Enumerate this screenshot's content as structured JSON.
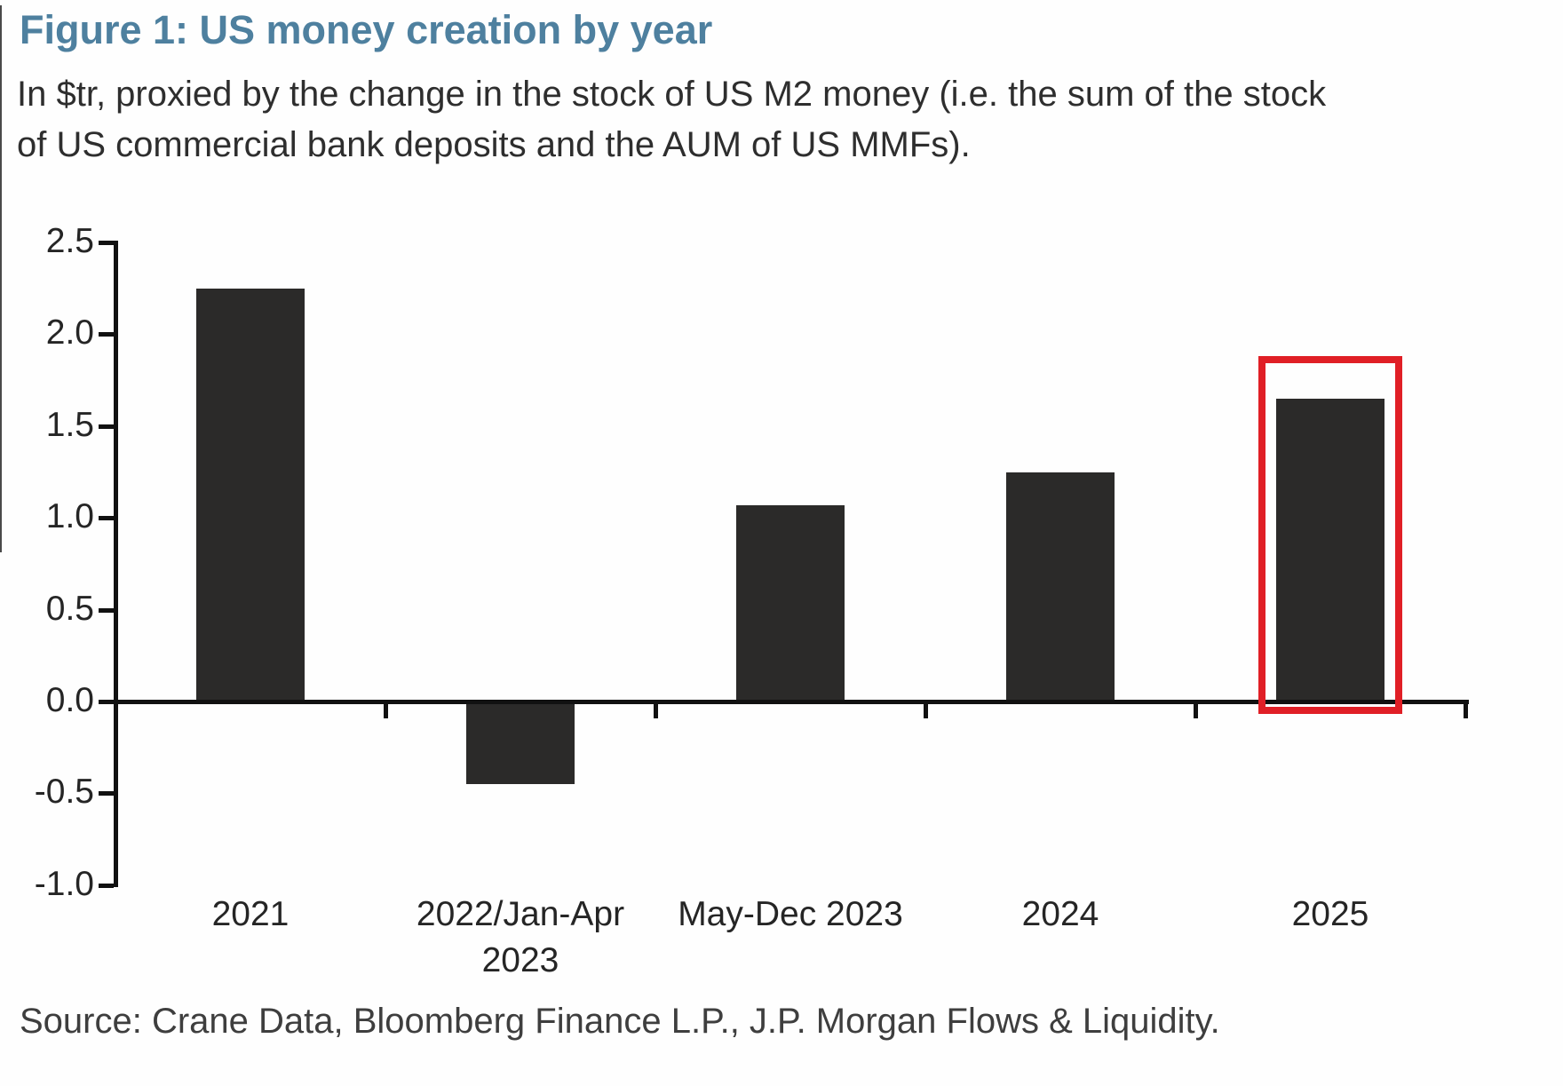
{
  "figure": {
    "title": "Figure 1: US money creation by year",
    "subtitle_line1": "In $tr, proxied by the change in the stock of US M2 money (i.e. the sum of the stock",
    "subtitle_line2": "of US commercial bank deposits and the AUM of US MMFs).",
    "source": "Source: Crane Data, Bloomberg Finance L.P., J.P. Morgan Flows & Liquidity."
  },
  "colors": {
    "title_blue": "#4e809f",
    "bar": "#2b2a29",
    "axis": "#111111",
    "label_text": "#252525",
    "source_text": "#3e3e3e",
    "highlight_red": "#e01f26"
  },
  "chart_data": {
    "type": "bar",
    "title": "Figure 1: US money creation by year",
    "units": "$tr",
    "categories": [
      "2021",
      "2022/Jan-Apr\n2023",
      "May-Dec 2023",
      "2024",
      "2025"
    ],
    "values": [
      2.25,
      -0.45,
      1.07,
      1.25,
      1.65
    ],
    "ylim": [
      -1.0,
      2.5
    ],
    "ytick_labels": [
      "2.5",
      "2.0",
      "1.5",
      "1.0",
      "0.5",
      "0.0",
      "-0.5",
      "-1.0"
    ],
    "xlabel": "",
    "ylabel": "",
    "grid": false,
    "legend": "none",
    "highlight": {
      "category": "2025",
      "style": "red-outline-box",
      "color": "#e01f26"
    }
  }
}
